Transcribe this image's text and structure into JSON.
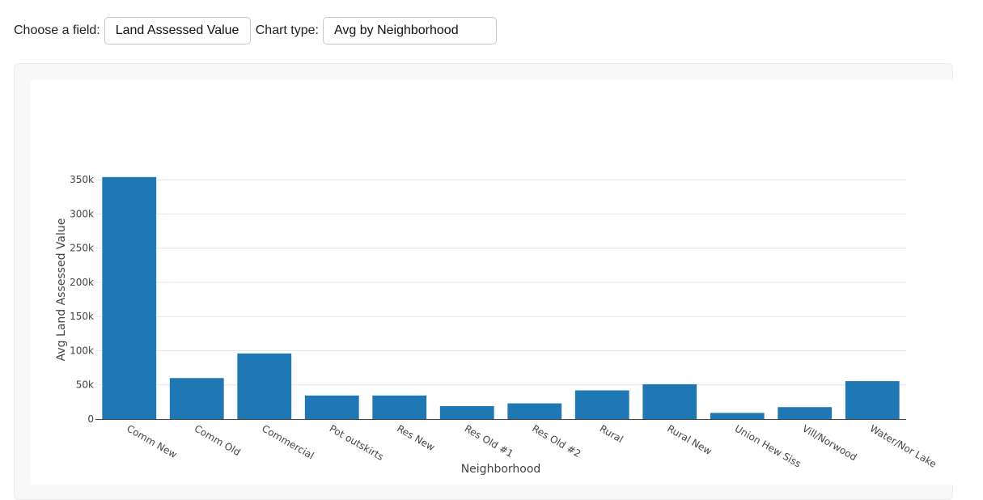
{
  "controls": {
    "field_label": "Choose a field:",
    "field_value": "Land Assessed Value",
    "type_label": "Chart type:",
    "type_value": "Avg by Neighborhood"
  },
  "chart_data": {
    "type": "bar",
    "categories": [
      "Comm New",
      "Comm Old",
      "Commercial",
      "Pot outskirts",
      "Res New",
      "Res Old #1",
      "Res Old #2",
      "Rural",
      "Rural New",
      "Union Hew Siss",
      "Vill/Norwood",
      "Water/Nor Lake"
    ],
    "values": [
      354000,
      60000,
      96000,
      34500,
      34500,
      19000,
      23000,
      42000,
      51000,
      9000,
      17500,
      55500
    ],
    "xlabel": "Neighborhood",
    "ylabel": "Avg Land Assessed Value",
    "ylim": [
      0,
      365000
    ],
    "yticks": [
      0,
      50000,
      100000,
      150000,
      200000,
      250000,
      300000,
      350000
    ],
    "ytick_labels": [
      "0",
      "50k",
      "100k",
      "150k",
      "200k",
      "250k",
      "300k",
      "350k"
    ],
    "bar_color": "#1f77b4",
    "grid": true
  }
}
